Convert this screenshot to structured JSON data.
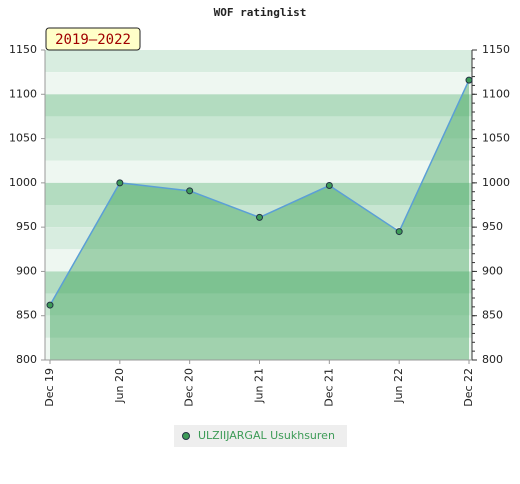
{
  "chart_data": {
    "type": "line",
    "title": "WOF ratinglist",
    "annotation": "2019–2022",
    "categories": [
      "Dec 19",
      "Jun 20",
      "Dec 20",
      "Jun 21",
      "Dec 21",
      "Jun 22",
      "Dec 22"
    ],
    "series": [
      {
        "name": "ULZIIJARGAL Usukhsuren",
        "color": "#3d9b57",
        "line_color": "#5b9fd6",
        "values": [
          862,
          1000,
          991,
          961,
          997,
          945,
          1116
        ]
      }
    ],
    "ylim": [
      800,
      1150
    ],
    "yticks": [
      800,
      850,
      900,
      950,
      1000,
      1050,
      1100,
      1150
    ],
    "y2lim": [
      800,
      1150
    ],
    "y2ticks": [
      800,
      850,
      900,
      950,
      1000,
      1050,
      1100,
      1150
    ]
  }
}
